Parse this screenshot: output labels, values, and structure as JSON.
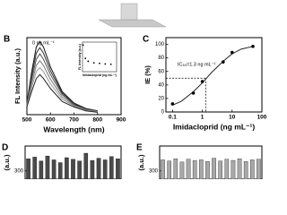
{
  "chart_data": [
    {
      "type": "line",
      "panel": "B",
      "xlabel": "Wavelength (nm)",
      "ylabel": "FL Intensity (a.u.)",
      "annotation": "0 ng mL⁻¹",
      "x": [
        500,
        520,
        540,
        555,
        570,
        600,
        650,
        700,
        750,
        800
      ],
      "xlim": [
        500,
        900
      ],
      "xticks": [
        500,
        600,
        700,
        800,
        900
      ],
      "ylim": [
        0,
        100
      ],
      "series": [
        {
          "color": "#111111",
          "values": [
            15,
            55,
            88,
            95,
            88,
            62,
            30,
            15,
            8,
            5
          ]
        },
        {
          "color": "#333333",
          "values": [
            14,
            50,
            80,
            87,
            80,
            57,
            28,
            14,
            7,
            5
          ]
        },
        {
          "color": "#555555",
          "values": [
            13,
            45,
            72,
            79,
            72,
            52,
            26,
            13,
            7,
            4
          ]
        },
        {
          "color": "#777777",
          "values": [
            12,
            40,
            64,
            70,
            64,
            46,
            23,
            12,
            6,
            4
          ]
        },
        {
          "color": "#999999",
          "values": [
            11,
            35,
            56,
            61,
            56,
            40,
            20,
            11,
            6,
            4
          ]
        },
        {
          "color": "#222222",
          "values": [
            10,
            30,
            47,
            52,
            47,
            34,
            17,
            10,
            5,
            3
          ]
        }
      ]
    },
    {
      "type": "scatter",
      "xlabel": "Imidacloprid (ng mL⁻¹)",
      "ylabel": "FL Intensity (a.u.)",
      "x": [
        1,
        5,
        10,
        20,
        30,
        40,
        50
      ],
      "values": [
        90,
        45,
        35,
        30,
        28,
        26,
        25
      ],
      "color": "#000000",
      "xlim": [
        0,
        60
      ],
      "ylim": [
        0,
        100
      ]
    },
    {
      "type": "scatter",
      "panel": "C",
      "xlabel": "Imidacloprid (ng mL⁻¹)",
      "ylabel": "IE (%)",
      "annotation": "IC₅₀=1.3 ng mL⁻¹",
      "xscale": "log",
      "x": [
        0.1,
        0.5,
        1,
        5,
        10,
        50
      ],
      "values": [
        12,
        28,
        45,
        74,
        88,
        97
      ],
      "color": "#000000",
      "fit": {
        "x": [
          0.1,
          0.2,
          0.5,
          1,
          2,
          5,
          10,
          20,
          50
        ],
        "values": [
          10,
          16,
          30,
          43,
          58,
          75,
          86,
          93,
          97
        ],
        "color": "#222222"
      },
      "reference": {
        "x": 1.3,
        "y": 50
      },
      "xlim": [
        0.06,
        100
      ],
      "xticks": [
        0.1,
        1,
        10,
        100
      ],
      "ylim": [
        0,
        110
      ],
      "yticks": [
        0,
        20,
        40,
        60,
        80,
        100
      ]
    },
    {
      "type": "bar",
      "panel": "D",
      "ylabel": "(a.u.)",
      "color": "#4a4a4a",
      "values": [
        322,
        325,
        318,
        327,
        320,
        315,
        324,
        321,
        318,
        332,
        319,
        323,
        320,
        326,
        322
      ],
      "ylim": [
        285,
        345
      ],
      "yticks": [
        300
      ]
    },
    {
      "type": "bar",
      "panel": "E",
      "ylabel": "(a.u.)",
      "color": "#a8a8a8",
      "values": [
        320,
        318,
        322,
        316,
        321,
        319,
        320,
        317,
        323,
        318,
        321,
        319,
        322,
        317,
        320,
        321
      ],
      "ylim": [
        285,
        345
      ],
      "yticks": [
        300
      ]
    }
  ]
}
